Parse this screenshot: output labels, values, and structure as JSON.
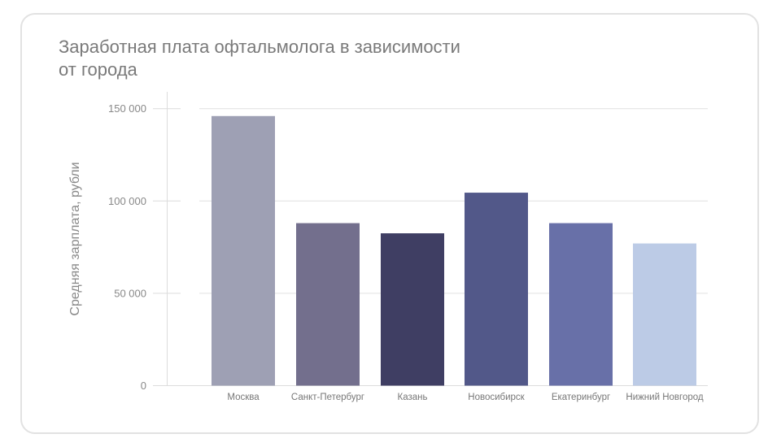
{
  "chart_data": {
    "type": "bar",
    "title": "Заработная плата офтальмолога в зависимости от города",
    "title_lines": [
      "Заработная плата офтальмолога в зависимости",
      "от города"
    ],
    "xlabel": "",
    "ylabel": "Средняя зарплата, рубли",
    "ylim": [
      0,
      150000
    ],
    "yticks": [
      0,
      50000,
      100000,
      150000
    ],
    "ytick_labels": [
      "0",
      "50 000",
      "100 000",
      "150 000"
    ],
    "grid": true,
    "categories": [
      "Москва",
      "Санкт-Петербург",
      "Казань",
      "Новосибирск",
      "Екатеринбург",
      "Нижний Новгород"
    ],
    "values": [
      146000,
      88000,
      82500,
      104500,
      88000,
      77000
    ],
    "colors": [
      "#9ea0b4",
      "#736f8d",
      "#3f3e63",
      "#525889",
      "#6870a8",
      "#bccbe6"
    ]
  }
}
